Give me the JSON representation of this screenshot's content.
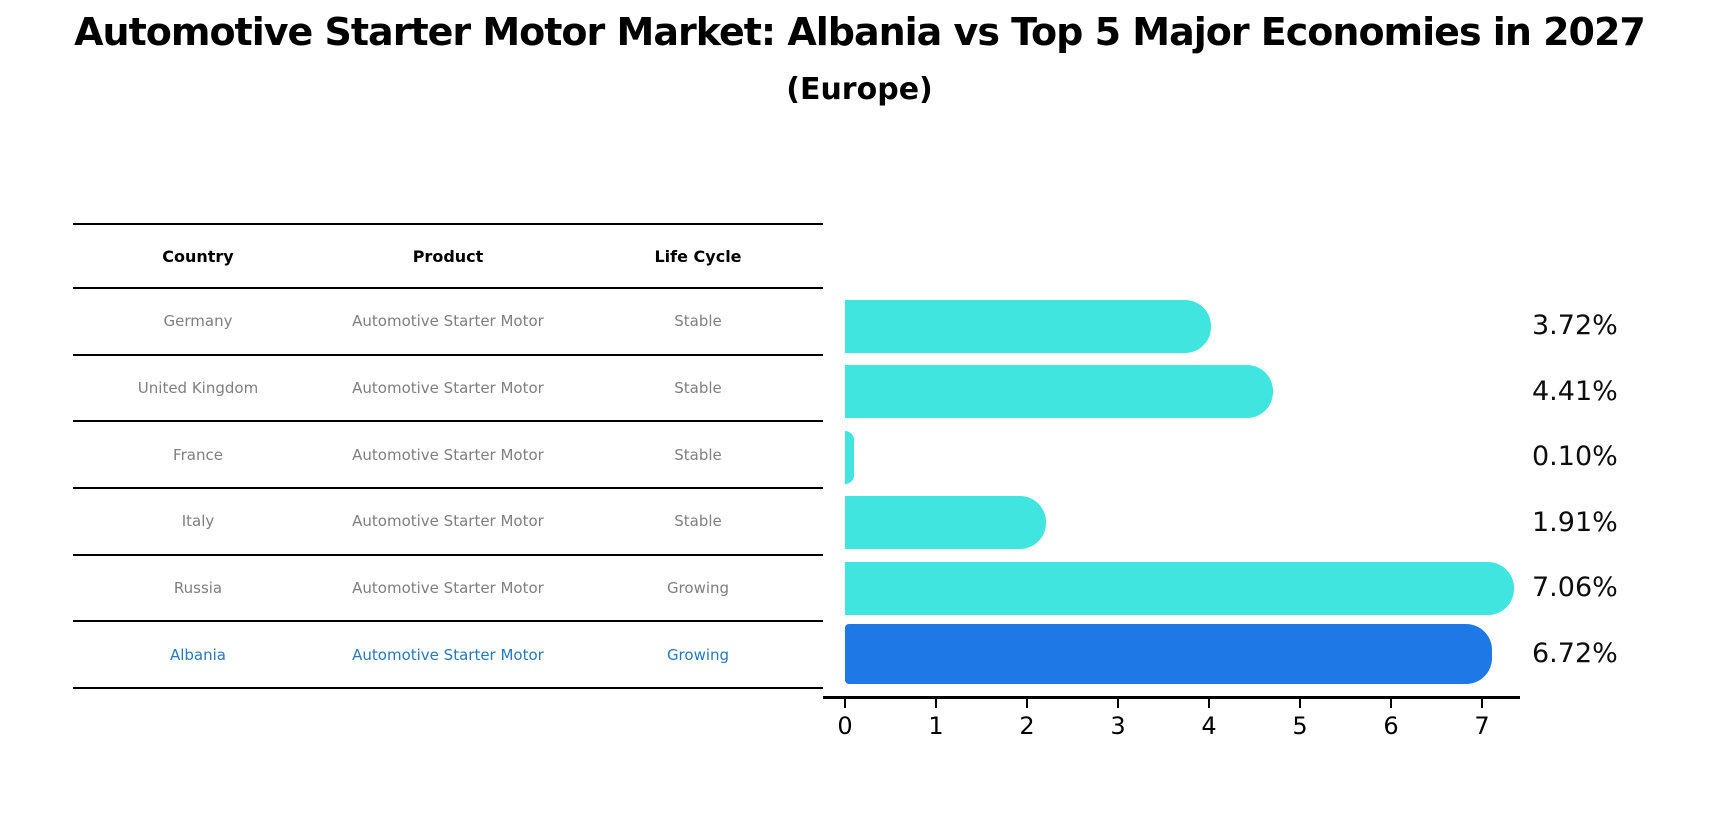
{
  "title": "Automotive Starter Motor Market: Albania vs Top 5 Major Economies in 2027",
  "subtitle": "(Europe)",
  "table": {
    "headers": [
      "Country",
      "Product",
      "Life Cycle"
    ],
    "rows": [
      {
        "country": "Germany",
        "product": "Automotive Starter Motor",
        "life_cycle": "Stable",
        "highlight": false
      },
      {
        "country": "United Kingdom",
        "product": "Automotive Starter Motor",
        "life_cycle": "Stable",
        "highlight": false
      },
      {
        "country": "France",
        "product": "Automotive Starter Motor",
        "life_cycle": "Stable",
        "highlight": false
      },
      {
        "country": "Italy",
        "product": "Automotive Starter Motor",
        "life_cycle": "Stable",
        "highlight": false
      },
      {
        "country": "Russia",
        "product": "Automotive Starter Motor",
        "life_cycle": "Growing",
        "highlight": false
      },
      {
        "country": "Albania",
        "product": "Automotive Starter Motor",
        "life_cycle": "Growing",
        "highlight": true
      }
    ]
  },
  "chart_data": {
    "type": "bar",
    "orientation": "horizontal",
    "title": "Automotive Starter Motor Market: Albania vs Top 5 Major Economies in 2027",
    "subtitle": "(Europe)",
    "categories": [
      "Germany",
      "United Kingdom",
      "France",
      "Italy",
      "Russia",
      "Albania"
    ],
    "values": [
      3.72,
      4.41,
      0.1,
      1.91,
      7.06,
      6.72
    ],
    "value_labels": [
      "3.72%",
      "4.41%",
      "0.10%",
      "1.91%",
      "7.06%",
      "6.72%"
    ],
    "xticks": [
      "0",
      "1",
      "2",
      "3",
      "4",
      "5",
      "6",
      "7"
    ],
    "xlim": [
      0,
      7.4
    ],
    "grid": false,
    "legend": "none",
    "bar_color": "#40e5e0",
    "highlight_color": "#1e78e6",
    "highlight_index": 5,
    "highlight_style": "dotted-border",
    "label_color": "#0d0d0d",
    "table_text_color": "#7f7f7f",
    "highlight_text_color": "#2878be"
  }
}
